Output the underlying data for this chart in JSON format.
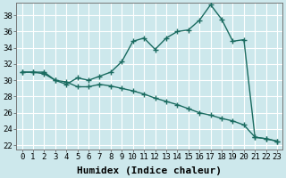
{
  "xlabel": "Humidex (Indice chaleur)",
  "bg_color": "#cde8ec",
  "grid_color": "#ffffff",
  "line_color": "#1a6b60",
  "xlim": [
    -0.5,
    23.5
  ],
  "ylim": [
    21.5,
    39.5
  ],
  "xticks": [
    0,
    1,
    2,
    3,
    4,
    5,
    6,
    7,
    8,
    9,
    10,
    11,
    12,
    13,
    14,
    15,
    16,
    17,
    18,
    19,
    20,
    21,
    22,
    23
  ],
  "yticks": [
    22,
    24,
    26,
    28,
    30,
    32,
    34,
    36,
    38
  ],
  "line1_x": [
    0,
    1,
    2,
    3,
    4,
    5,
    6,
    7,
    8,
    9,
    10,
    11,
    12,
    13,
    14,
    15,
    16,
    17,
    18,
    19,
    20,
    21,
    22,
    23
  ],
  "line1_y": [
    31,
    31,
    31,
    30,
    29.5,
    30.3,
    30,
    30.5,
    31,
    32.3,
    34.8,
    35.2,
    33.8,
    35.2,
    36.0,
    36.2,
    37.4,
    39.3,
    37.5,
    34.8,
    35.0,
    23.0,
    22.8,
    22.5
  ],
  "line2_x": [
    0,
    1,
    2,
    3,
    4,
    5,
    6,
    7,
    8,
    9,
    10,
    11,
    12,
    13,
    14,
    15,
    16,
    17,
    18,
    19,
    20,
    21,
    22,
    23
  ],
  "line2_y": [
    31,
    31,
    30.8,
    30.0,
    29.8,
    29.2,
    29.2,
    29.5,
    29.3,
    29.0,
    28.7,
    28.3,
    27.8,
    27.4,
    27.0,
    26.5,
    26.0,
    25.7,
    25.3,
    25.0,
    24.5,
    23.0,
    22.8,
    22.5
  ],
  "marker_size": 4,
  "line_width": 1.0,
  "tick_fontsize": 6.5,
  "xlabel_fontsize": 8
}
